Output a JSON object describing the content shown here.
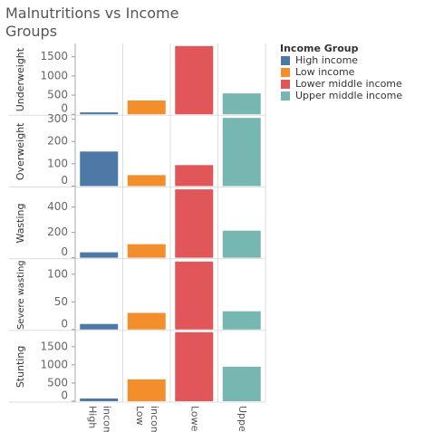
{
  "chart_data": {
    "type": "bar",
    "title_lines": [
      "Malnutritions vs Income",
      "Groups"
    ],
    "legend_title": "Income Group",
    "categories": [
      "High income",
      "Low income",
      "Lower middle income",
      "Upper middle income"
    ],
    "x_labels": [
      [
        "High",
        "income"
      ],
      [
        "Low",
        "income"
      ],
      [
        "Lower.."
      ],
      [
        "Upper.."
      ]
    ],
    "colors": [
      "#4e79a7",
      "#f28e2b",
      "#e15759",
      "#76b7b2"
    ],
    "panels": [
      {
        "name": "Underweight",
        "values": [
          50,
          360,
          1780,
          545
        ],
        "ylim": [
          0,
          1800
        ],
        "yticks": [
          0,
          500,
          1000,
          1500
        ]
      },
      {
        "name": "Overweight",
        "values": [
          155,
          49,
          94,
          306
        ],
        "ylim": [
          0,
          310
        ],
        "yticks": [
          0,
          100,
          200,
          300
        ]
      },
      {
        "name": "Wasting",
        "values": [
          43,
          107,
          540,
          214
        ],
        "ylim": [
          0,
          545
        ],
        "yticks": [
          0,
          200,
          400
        ]
      },
      {
        "name": "Severe wasting",
        "values": [
          10,
          30,
          123,
          33
        ],
        "ylim": [
          0,
          125
        ],
        "yticks": [
          0,
          50,
          100
        ]
      },
      {
        "name": "Stunting",
        "values": [
          75,
          600,
          1900,
          950
        ],
        "ylim": [
          0,
          1900
        ],
        "yticks": [
          0,
          500,
          1000,
          1500
        ]
      }
    ]
  }
}
